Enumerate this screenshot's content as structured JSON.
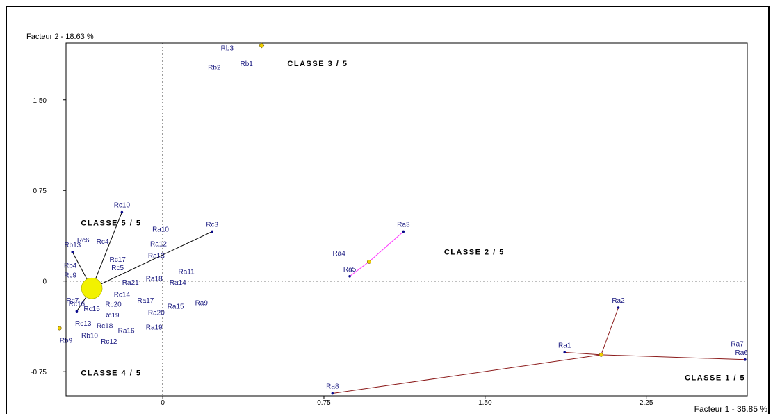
{
  "chart_data": {
    "type": "scatter",
    "xlabel": "Facteur 1  -  36.85 %",
    "ylabel": "Facteur 2  -  18.63 %",
    "xlim": [
      -0.45,
      2.72
    ],
    "ylim": [
      -0.95,
      1.97
    ],
    "xticks": [
      {
        "v": 0,
        "label": "0"
      },
      {
        "v": 0.75,
        "label": "0.75"
      },
      {
        "v": 1.5,
        "label": "1.50"
      },
      {
        "v": 2.25,
        "label": "2.25"
      }
    ],
    "yticks": [
      {
        "v": -0.75,
        "label": "-0.75"
      },
      {
        "v": 0,
        "label": "0"
      },
      {
        "v": 0.75,
        "label": "0.75"
      },
      {
        "v": 1.5,
        "label": "1.50"
      }
    ],
    "grid": false,
    "reference_lines": [
      "x=0",
      "y=0"
    ],
    "colors": {
      "points": "#0a0a8c",
      "labels": "#1a1a80",
      "class1": "#8b1a1a",
      "class2": "#ff33ff",
      "class5": "#000000",
      "centroid_large": "#f2f200",
      "centroid": "#f0d000"
    },
    "classes": [
      {
        "label": "CLASSE  1 / 5",
        "centroid": [
          2.04,
          -0.61
        ],
        "members": [
          "Ra1",
          "Ra2",
          "Ra6",
          "Ra8"
        ]
      },
      {
        "label": "CLASSE  2 / 5",
        "centroid": [
          0.96,
          0.16
        ],
        "members": [
          "Ra3",
          "Ra5"
        ]
      },
      {
        "label": "CLASSE  3 / 5",
        "centroid": [
          0.46,
          1.95
        ],
        "members": []
      },
      {
        "label": "CLASSE  4 / 5",
        "centroid": [
          -0.48,
          -0.39
        ],
        "members": []
      },
      {
        "label": "CLASSE  5 / 5",
        "centroid": [
          -0.33,
          -0.06
        ],
        "members": [
          "Rc10",
          "Rc3",
          "Rb13",
          "Rc16"
        ]
      }
    ],
    "points": [
      {
        "name": "Ra1",
        "x": 1.87,
        "y": -0.59,
        "marker": true
      },
      {
        "name": "Ra2",
        "x": 2.12,
        "y": -0.22,
        "marker": true
      },
      {
        "name": "Ra3",
        "x": 1.12,
        "y": 0.41,
        "marker": true
      },
      {
        "name": "Ra4",
        "x": 0.82,
        "y": 0.21
      },
      {
        "name": "Ra5",
        "x": 0.87,
        "y": 0.04,
        "marker": true
      },
      {
        "name": "Ra6",
        "x": 2.71,
        "y": -0.65,
        "marker": true
      },
      {
        "name": "Ra7",
        "x": 2.69,
        "y": -0.54
      },
      {
        "name": "Ra8",
        "x": 0.79,
        "y": -0.93,
        "marker": true
      },
      {
        "name": "Ra9",
        "x": 0.18,
        "y": -0.2
      },
      {
        "name": "Ra10",
        "x": -0.01,
        "y": 0.41
      },
      {
        "name": "Ra11",
        "x": 0.11,
        "y": 0.06
      },
      {
        "name": "Ra12",
        "x": -0.02,
        "y": 0.29
      },
      {
        "name": "Ra13",
        "x": -0.03,
        "y": 0.19
      },
      {
        "name": "Ra14",
        "x": 0.07,
        "y": -0.03
      },
      {
        "name": "Ra15",
        "x": 0.06,
        "y": -0.23
      },
      {
        "name": "Ra16",
        "x": -0.17,
        "y": -0.43
      },
      {
        "name": "Ra17",
        "x": -0.08,
        "y": -0.18
      },
      {
        "name": "Ra18",
        "x": -0.04,
        "y": 0.0
      },
      {
        "name": "Ra19",
        "x": -0.04,
        "y": -0.4
      },
      {
        "name": "Ra20",
        "x": -0.03,
        "y": -0.28
      },
      {
        "name": "Ra21",
        "x": -0.15,
        "y": -0.03
      },
      {
        "name": "Rb1",
        "x": 0.39,
        "y": 1.78
      },
      {
        "name": "Rb2",
        "x": 0.24,
        "y": 1.75
      },
      {
        "name": "Rb3",
        "x": 0.3,
        "y": 1.91
      },
      {
        "name": "Rb4",
        "x": -0.43,
        "y": 0.11
      },
      {
        "name": "Rb9",
        "x": -0.45,
        "y": -0.51
      },
      {
        "name": "Rb10",
        "x": -0.34,
        "y": -0.47
      },
      {
        "name": "Rb13",
        "x": -0.42,
        "y": 0.24,
        "marker": true
      },
      {
        "name": "Rc3",
        "x": 0.23,
        "y": 0.41,
        "marker": true
      },
      {
        "name": "Rc4",
        "x": -0.28,
        "y": 0.31
      },
      {
        "name": "Rc5",
        "x": -0.21,
        "y": 0.09
      },
      {
        "name": "Rc6",
        "x": -0.37,
        "y": 0.32
      },
      {
        "name": "Rc7",
        "x": -0.42,
        "y": -0.18
      },
      {
        "name": "Rc9",
        "x": -0.43,
        "y": 0.03
      },
      {
        "name": "Rc10",
        "x": -0.19,
        "y": 0.57,
        "marker": true
      },
      {
        "name": "Rc12",
        "x": -0.25,
        "y": -0.52
      },
      {
        "name": "Rc13",
        "x": -0.37,
        "y": -0.37
      },
      {
        "name": "Rc14",
        "x": -0.19,
        "y": -0.13
      },
      {
        "name": "Rc15",
        "x": -0.33,
        "y": -0.25
      },
      {
        "name": "Rc16",
        "x": -0.4,
        "y": -0.25,
        "marker": true
      },
      {
        "name": "Rc17",
        "x": -0.21,
        "y": 0.16
      },
      {
        "name": "Rc18",
        "x": -0.27,
        "y": -0.39
      },
      {
        "name": "Rc19",
        "x": -0.24,
        "y": -0.3
      },
      {
        "name": "Rc20",
        "x": -0.23,
        "y": -0.21
      }
    ]
  }
}
